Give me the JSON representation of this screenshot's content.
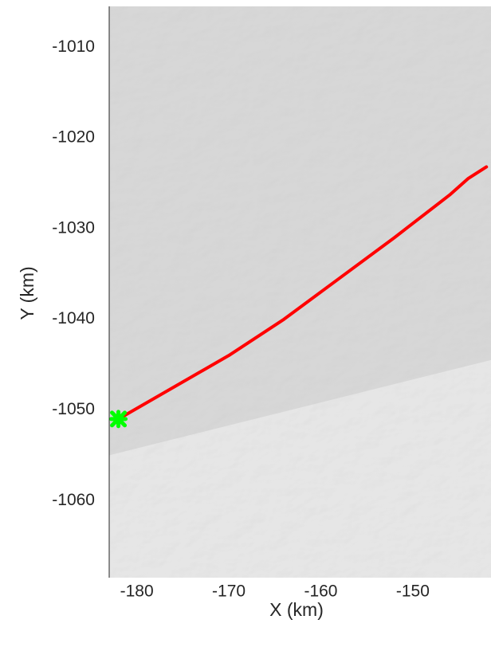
{
  "chart_data": {
    "type": "scatter",
    "xlabel": "X (km)",
    "ylabel": "Y (km)",
    "xlim": [
      -183,
      -141.5
    ],
    "ylim": [
      -1068.5,
      -1005.5
    ],
    "x_ticks": [
      -180,
      -170,
      -160,
      -150
    ],
    "y_ticks": [
      -1010,
      -1020,
      -1030,
      -1040,
      -1050,
      -1060
    ],
    "x_tick_labels": [
      "-180",
      "-170",
      "-160",
      "-150"
    ],
    "y_tick_labels": [
      "-1010",
      "-1020",
      "-1030",
      "-1040",
      "-1050",
      "-1060"
    ],
    "background": {
      "kind": "shaded-relief imagery",
      "upper_color": "#d7d7d7",
      "lower_color": "#e6e6e6",
      "boundary": [
        {
          "x": -183,
          "y": -1055
        },
        {
          "x": -141.5,
          "y": -1044.5
        }
      ]
    },
    "series": [
      {
        "type": "line",
        "color": "#ff0000",
        "points": [
          {
            "x": -182,
            "y": -1051
          },
          {
            "x": -170,
            "y": -1044
          },
          {
            "x": -164,
            "y": -1040
          },
          {
            "x": -158,
            "y": -1035.5
          },
          {
            "x": -152,
            "y": -1031
          },
          {
            "x": -146,
            "y": -1026.3
          },
          {
            "x": -144,
            "y": -1024.5
          },
          {
            "x": -142,
            "y": -1023.2
          }
        ]
      },
      {
        "type": "marker",
        "color": "#00ff00",
        "points": [
          {
            "x": -182,
            "y": -1051
          }
        ]
      }
    ]
  }
}
